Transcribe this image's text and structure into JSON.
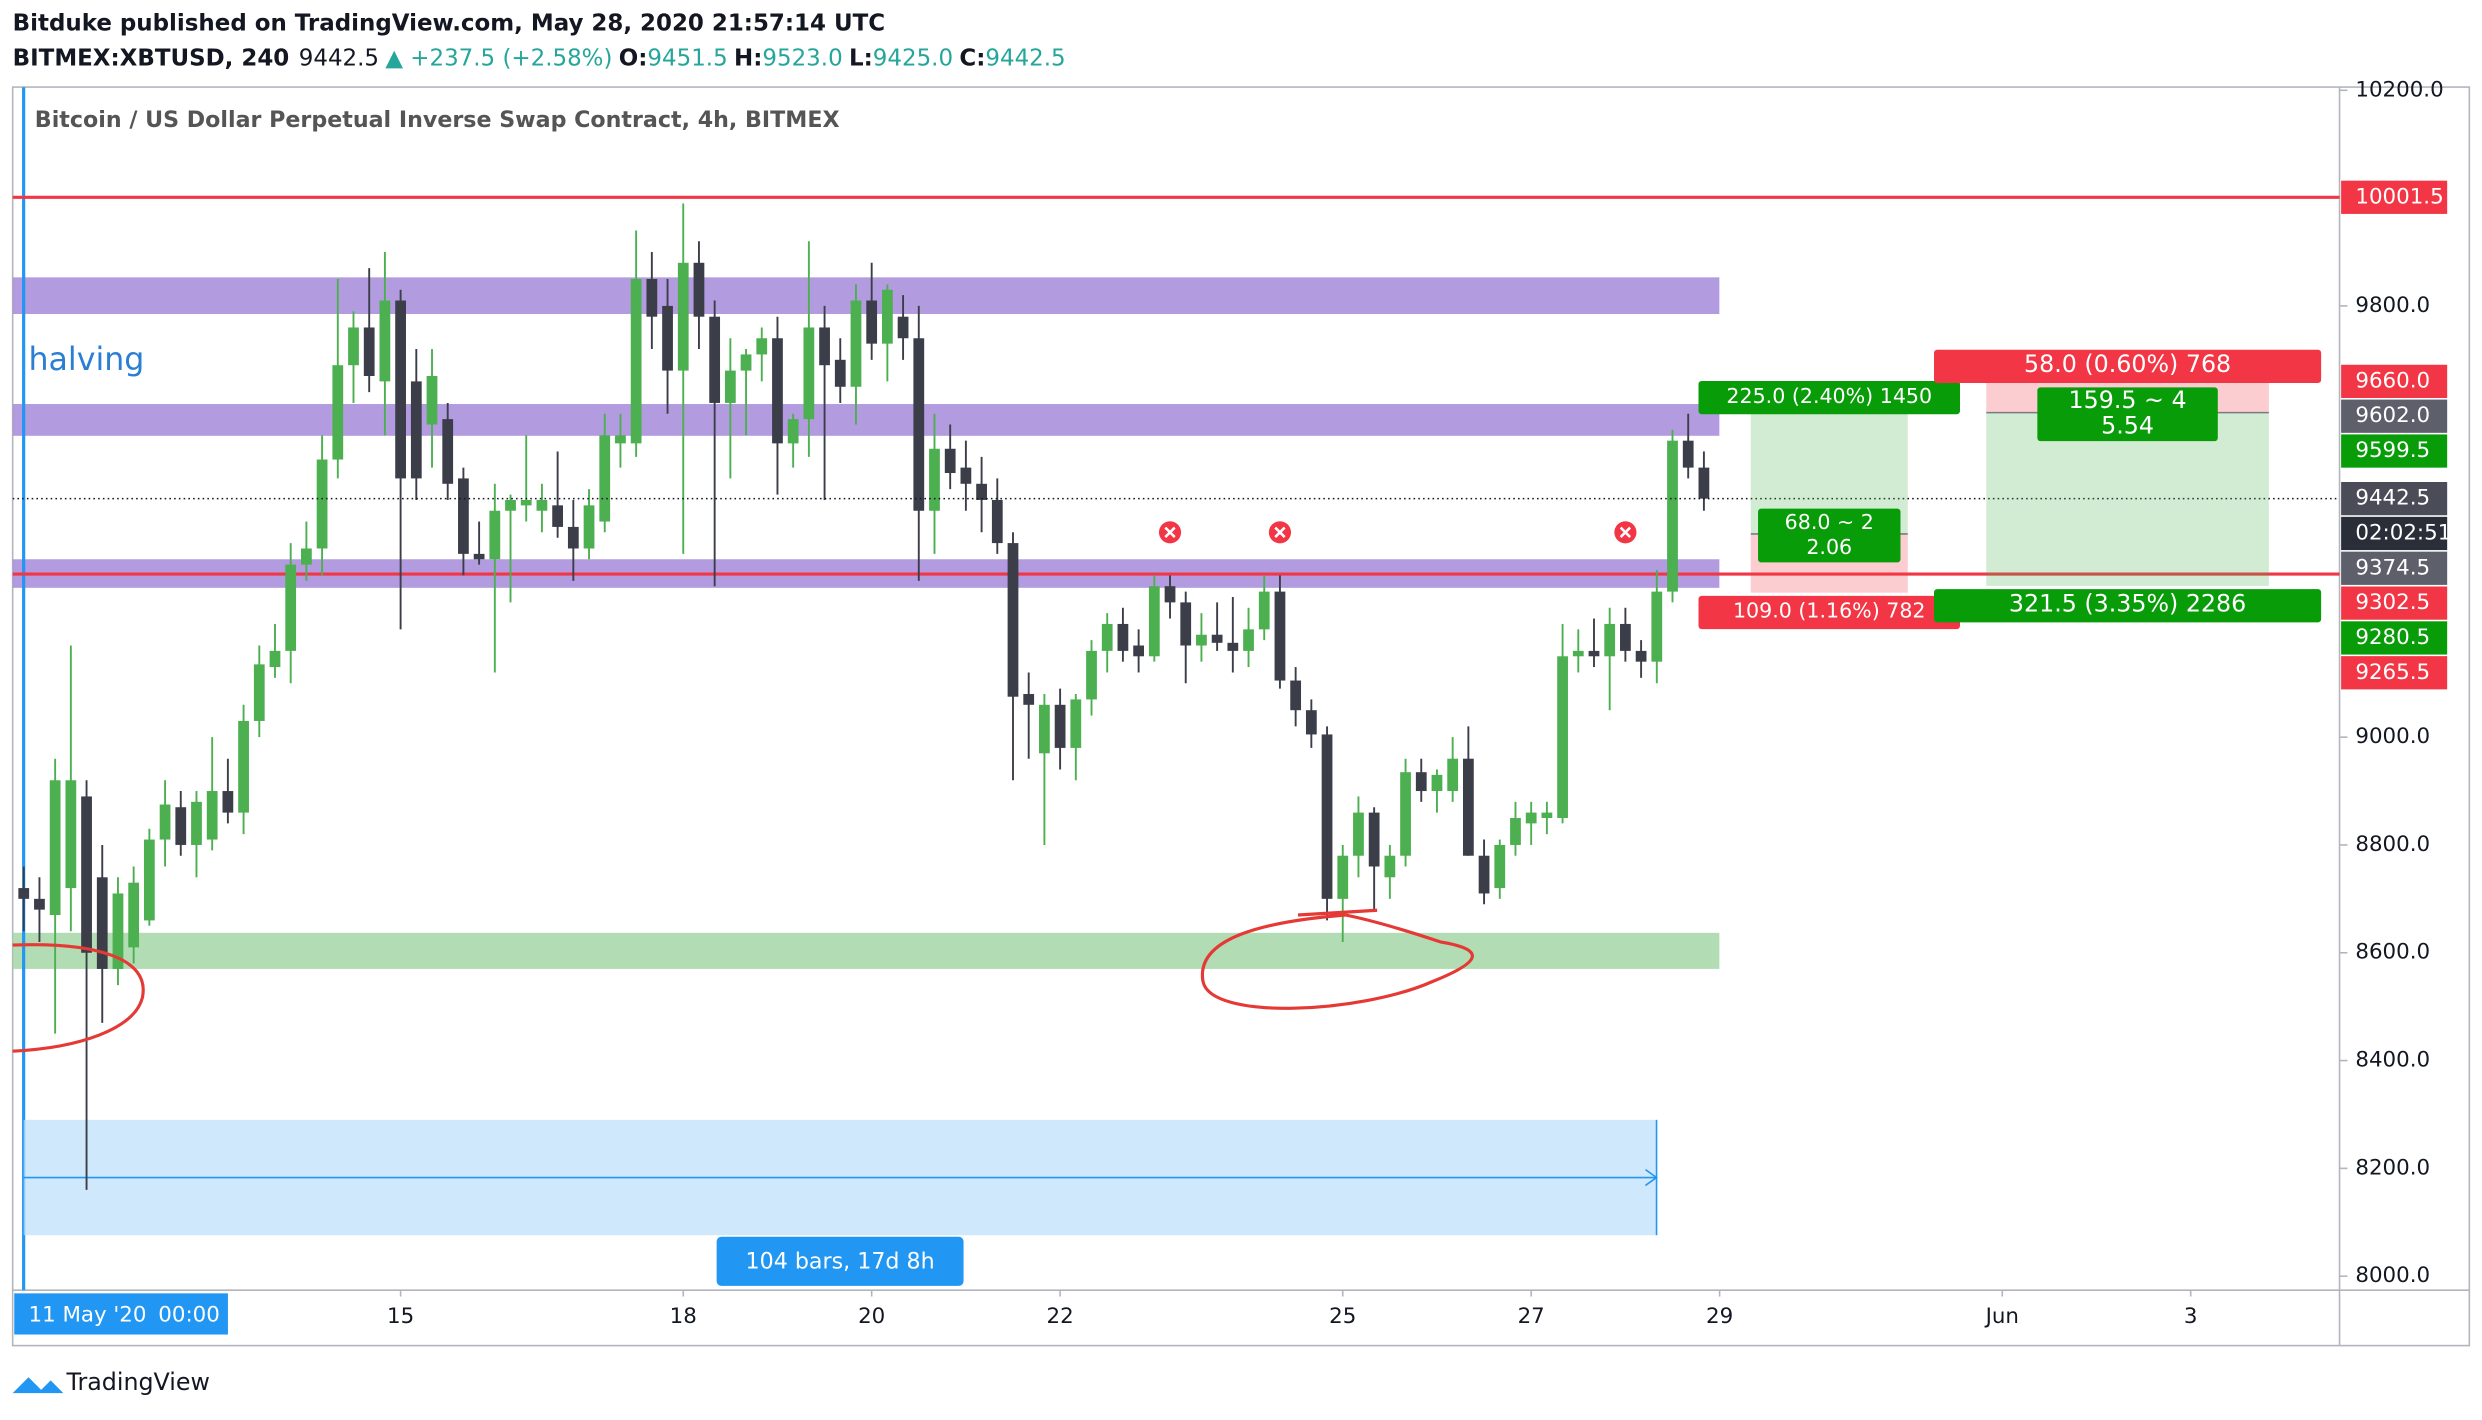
{
  "header": {
    "line1": "Bitduke published on TradingView.com, May 28, 2020 21:57:14 UTC",
    "symbol": "BITMEX:XBTUSD, 240",
    "price": "9442.5",
    "change": "▲ +237.5 (+2.58%)",
    "o_label": "O:",
    "o": "9451.5",
    "h_label": "H:",
    "h": "9523.0",
    "l_label": "L:",
    "l": "9425.0",
    "c_label": "C:",
    "c": "9442.5"
  },
  "chart_data": {
    "type": "candlestick",
    "title": "Bitcoin / US Dollar Perpetual Inverse Swap Contract, 4h, BITMEX",
    "up_color": "#4caf50",
    "down_color": "#3b3e49",
    "candles": [
      [
        8720,
        8760,
        8640,
        8700
      ],
      [
        8700,
        8740,
        8620,
        8680
      ],
      [
        8670,
        8960,
        8450,
        8920
      ],
      [
        8720,
        9170,
        8640,
        8920
      ],
      [
        8890,
        8920,
        8160,
        8600
      ],
      [
        8740,
        8800,
        8470,
        8570
      ],
      [
        8570,
        8740,
        8540,
        8710
      ],
      [
        8610,
        8760,
        8580,
        8730
      ],
      [
        8660,
        8830,
        8650,
        8810
      ],
      [
        8810,
        8920,
        8760,
        8875
      ],
      [
        8870,
        8900,
        8780,
        8800
      ],
      [
        8800,
        8900,
        8740,
        8880
      ],
      [
        8810,
        9000,
        8790,
        8900
      ],
      [
        8900,
        8960,
        8840,
        8860
      ],
      [
        8860,
        9060,
        8820,
        9030
      ],
      [
        9030,
        9170,
        9000,
        9135
      ],
      [
        9130,
        9210,
        9110,
        9160
      ],
      [
        9160,
        9360,
        9100,
        9320
      ],
      [
        9320,
        9400,
        9290,
        9350
      ],
      [
        9350,
        9560,
        9300,
        9515
      ],
      [
        9515,
        9850,
        9480,
        9690
      ],
      [
        9690,
        9790,
        9620,
        9760
      ],
      [
        9760,
        9870,
        9640,
        9670
      ],
      [
        9660,
        9900,
        9560,
        9810
      ],
      [
        9810,
        9830,
        9200,
        9480
      ],
      [
        9660,
        9720,
        9440,
        9480
      ],
      [
        9580,
        9720,
        9500,
        9670
      ],
      [
        9590,
        9620,
        9440,
        9470
      ],
      [
        9480,
        9500,
        9300,
        9340
      ],
      [
        9340,
        9400,
        9320,
        9330
      ],
      [
        9330,
        9470,
        9120,
        9420
      ],
      [
        9420,
        9450,
        9250,
        9440
      ],
      [
        9430,
        9560,
        9400,
        9440
      ],
      [
        9420,
        9470,
        9380,
        9440
      ],
      [
        9430,
        9530,
        9370,
        9390
      ],
      [
        9390,
        9440,
        9290,
        9350
      ],
      [
        9350,
        9460,
        9330,
        9430
      ],
      [
        9400,
        9600,
        9380,
        9560
      ],
      [
        9545,
        9600,
        9500,
        9560
      ],
      [
        9545,
        9940,
        9520,
        9850
      ],
      [
        9850,
        9900,
        9720,
        9780
      ],
      [
        9800,
        9850,
        9600,
        9680
      ],
      [
        9680,
        9990,
        9340,
        9880
      ],
      [
        9880,
        9920,
        9720,
        9780
      ],
      [
        9780,
        9810,
        9280,
        9620
      ],
      [
        9620,
        9740,
        9480,
        9680
      ],
      [
        9680,
        9720,
        9560,
        9710
      ],
      [
        9710,
        9760,
        9660,
        9740
      ],
      [
        9740,
        9780,
        9450,
        9545
      ],
      [
        9545,
        9600,
        9500,
        9590
      ],
      [
        9590,
        9920,
        9520,
        9760
      ],
      [
        9760,
        9800,
        9440,
        9690
      ],
      [
        9700,
        9740,
        9620,
        9650
      ],
      [
        9650,
        9840,
        9580,
        9810
      ],
      [
        9810,
        9880,
        9700,
        9730
      ],
      [
        9730,
        9840,
        9660,
        9830
      ],
      [
        9780,
        9820,
        9700,
        9740
      ],
      [
        9740,
        9800,
        9290,
        9420
      ],
      [
        9420,
        9600,
        9340,
        9535
      ],
      [
        9535,
        9580,
        9460,
        9490
      ],
      [
        9500,
        9550,
        9420,
        9470
      ],
      [
        9470,
        9520,
        9380,
        9440
      ],
      [
        9440,
        9480,
        9340,
        9360
      ],
      [
        9360,
        9380,
        8920,
        9075
      ],
      [
        9080,
        9120,
        8960,
        9060
      ],
      [
        8970,
        9080,
        8800,
        9060
      ],
      [
        9060,
        9090,
        8940,
        8980
      ],
      [
        8980,
        9080,
        8920,
        9070
      ],
      [
        9070,
        9180,
        9040,
        9160
      ],
      [
        9160,
        9230,
        9120,
        9210
      ],
      [
        9210,
        9240,
        9140,
        9160
      ],
      [
        9170,
        9200,
        9120,
        9150
      ],
      [
        9150,
        9300,
        9140,
        9280
      ],
      [
        9280,
        9300,
        9220,
        9250
      ],
      [
        9250,
        9270,
        9100,
        9170
      ],
      [
        9170,
        9230,
        9140,
        9190
      ],
      [
        9190,
        9250,
        9160,
        9175
      ],
      [
        9175,
        9260,
        9120,
        9160
      ],
      [
        9160,
        9240,
        9130,
        9200
      ],
      [
        9200,
        9300,
        9180,
        9270
      ],
      [
        9270,
        9300,
        9090,
        9105
      ],
      [
        9105,
        9130,
        9020,
        9050
      ],
      [
        9050,
        9070,
        8980,
        9005
      ],
      [
        9005,
        9020,
        8660,
        8700
      ],
      [
        8700,
        8800,
        8620,
        8780
      ],
      [
        8780,
        8890,
        8740,
        8860
      ],
      [
        8860,
        8870,
        8680,
        8760
      ],
      [
        8740,
        8800,
        8700,
        8780
      ],
      [
        8780,
        8960,
        8760,
        8935
      ],
      [
        8935,
        8960,
        8880,
        8900
      ],
      [
        8900,
        8940,
        8860,
        8930
      ],
      [
        8900,
        9000,
        8880,
        8960
      ],
      [
        8960,
        9020,
        8780,
        8780
      ],
      [
        8780,
        8810,
        8690,
        8710
      ],
      [
        8720,
        8810,
        8700,
        8800
      ],
      [
        8800,
        8880,
        8780,
        8850
      ],
      [
        8840,
        8880,
        8800,
        8860
      ],
      [
        8850,
        8880,
        8820,
        8860
      ],
      [
        8850,
        9210,
        8840,
        9150
      ],
      [
        9150,
        9200,
        9120,
        9160
      ],
      [
        9160,
        9220,
        9130,
        9150
      ],
      [
        9150,
        9240,
        9050,
        9210
      ],
      [
        9210,
        9240,
        9140,
        9160
      ],
      [
        9160,
        9180,
        9110,
        9140
      ],
      [
        9140,
        9310,
        9100,
        9270
      ],
      [
        9270,
        9570,
        9250,
        9550
      ],
      [
        9550,
        9600,
        9480,
        9500
      ],
      [
        9500,
        9530,
        9420,
        9442.5
      ]
    ],
    "xlim": [
      -0.7,
      147.5
    ],
    "xticks": [
      {
        "value": 0,
        "label": "11 May '20"
      },
      {
        "value": 24,
        "label": "15"
      },
      {
        "value": 42,
        "label": "18"
      },
      {
        "value": 54,
        "label": "20"
      },
      {
        "value": 66,
        "label": "22"
      },
      {
        "value": 84,
        "label": "25"
      },
      {
        "value": 96,
        "label": "27"
      },
      {
        "value": 108,
        "label": "29"
      },
      {
        "value": 126,
        "label": "Jun"
      },
      {
        "value": 138,
        "label": "3"
      }
    ],
    "cursor_time": "00:00",
    "ylim": [
      7974,
      10206
    ],
    "yticks": [
      {
        "value": 8000,
        "label": "8000.0"
      },
      {
        "value": 8200,
        "label": "8200.0"
      },
      {
        "value": 8400,
        "label": "8400.0"
      },
      {
        "value": 8600,
        "label": "8600.0"
      },
      {
        "value": 8800,
        "label": "8800.0"
      },
      {
        "value": 9000,
        "label": "9000.0"
      },
      {
        "value": 9800,
        "label": "9800.0"
      },
      {
        "value": 10200,
        "label": "10200.0"
      }
    ],
    "price_lines": [
      {
        "value": 10001.5,
        "color": "#f23645"
      },
      {
        "value": 9302.5,
        "color": "#f23645"
      }
    ],
    "price_labels": [
      {
        "value": 10001.5,
        "label": "10001.5",
        "color": "#f23645"
      },
      {
        "value": 9660,
        "label": "9660.0",
        "color": "#f23645"
      },
      {
        "value": 9602,
        "label": "9602.0",
        "color": "#5d606b"
      },
      {
        "value": 9599.5,
        "label": "9599.5",
        "color": "#089c08"
      },
      {
        "value": 9442.5,
        "label": "9442.5",
        "color": "#4a4d57"
      },
      {
        "label": "02:02:51",
        "color": "#2a2e39"
      },
      {
        "value": 9374.5,
        "label": "9374.5",
        "color": "#5d606b"
      },
      {
        "value": 9302.5,
        "label": "9302.5",
        "color": "#f23645"
      },
      {
        "value": 9280.5,
        "label": "9280.5",
        "color": "#089c08"
      },
      {
        "value": 9265.5,
        "label": "9265.5",
        "color": "#f23645"
      }
    ],
    "zones": [
      {
        "from": 9785,
        "to": 9853,
        "color": "#a48bd9"
      },
      {
        "from": 9559,
        "to": 9618,
        "color": "#a48bd9"
      },
      {
        "from": 9277,
        "to": 9330,
        "color": "#a48bd9"
      },
      {
        "from": 8570,
        "to": 8637,
        "color": "#a5d6a7"
      }
    ],
    "zone_end": 108,
    "halving_label": "halving",
    "markers": [
      {
        "x": 73,
        "y": 9380
      },
      {
        "x": 80,
        "y": 9380
      },
      {
        "x": 102,
        "y": 9380
      }
    ],
    "date_range": {
      "from": 0,
      "to": 104,
      "low": 8076,
      "high": 8290,
      "label": "104 bars, 17d 8h"
    },
    "positions": [
      {
        "x": [
          110,
          120
        ],
        "entry": 9377,
        "target": 9602,
        "stop": 9268,
        "target_label": "225.0 (2.40%) 1450",
        "ratio_label": [
          "68.0 ~ 2",
          "2.06"
        ],
        "stop_label": "109.0 (1.16%) 782"
      },
      {
        "x": [
          125,
          143
        ],
        "entry": 9602,
        "target": 9280.5,
        "stop": 9660,
        "target_label": "321.5 (3.35%) 2286",
        "ratio_label": [
          "159.5 ~ 4",
          "5.54"
        ],
        "stop_label": "58.0 (0.60%) 768"
      }
    ]
  },
  "footer": {
    "brand": "TradingView"
  }
}
